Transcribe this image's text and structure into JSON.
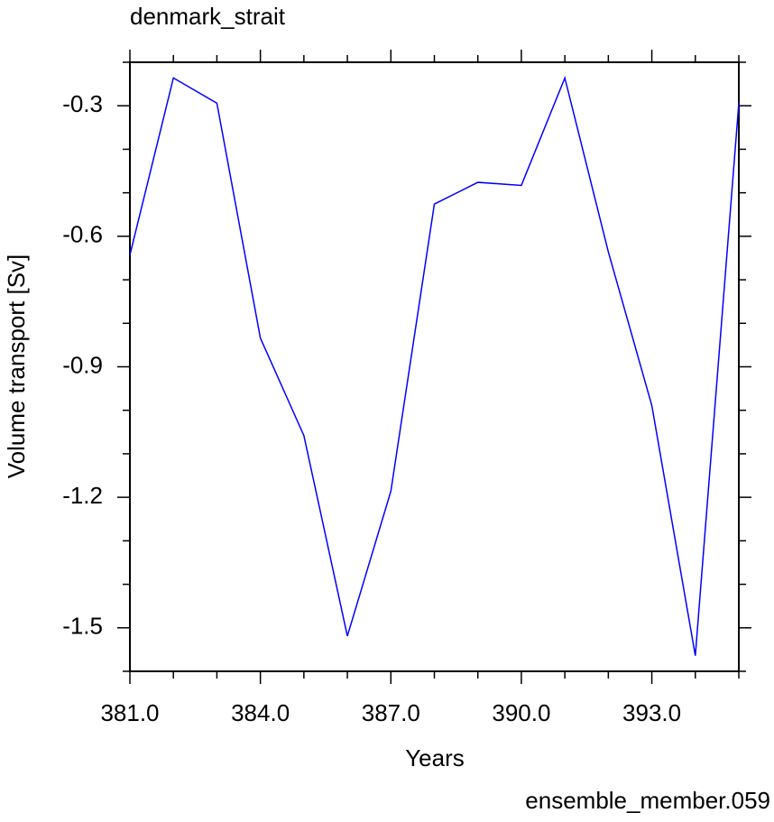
{
  "chart_data": {
    "type": "line",
    "title": "denmark_strait",
    "xlabel": "Years",
    "ylabel": "Volume transport [Sv]",
    "annotation": "ensemble_member.059",
    "annotation_color": "#0000ff",
    "x": [
      381,
      382,
      383,
      384,
      385,
      386,
      387,
      388,
      389,
      390,
      391,
      392,
      393,
      394,
      395
    ],
    "series": [
      {
        "color": "#0000ff",
        "values": [
          -0.643,
          -0.236,
          -0.294,
          -0.834,
          -1.058,
          -1.519,
          -1.186,
          -0.526,
          -0.476,
          -0.483,
          -0.236,
          -0.636,
          -0.989,
          -1.564,
          -0.294
        ]
      }
    ],
    "xlim": [
      381,
      395
    ],
    "xticks": [
      {
        "value": 381,
        "label": "381.0"
      },
      {
        "value": 384,
        "label": "384.0"
      },
      {
        "value": 387,
        "label": "387.0"
      },
      {
        "value": 390,
        "label": "390.0"
      },
      {
        "value": 393,
        "label": "393.0"
      }
    ],
    "xminorticks": [
      382,
      383,
      385,
      386,
      388,
      389,
      391,
      392,
      394,
      395
    ],
    "ylim": [
      -1.6,
      -0.2
    ],
    "yticks": [
      -0.3,
      -0.6,
      -0.9,
      -1.2,
      -1.5
    ],
    "yminorticks": [
      -0.2,
      -0.4,
      -0.5,
      -0.7,
      -0.8,
      -1.0,
      -1.1,
      -1.3,
      -1.4,
      -1.6
    ],
    "grid": false
  }
}
